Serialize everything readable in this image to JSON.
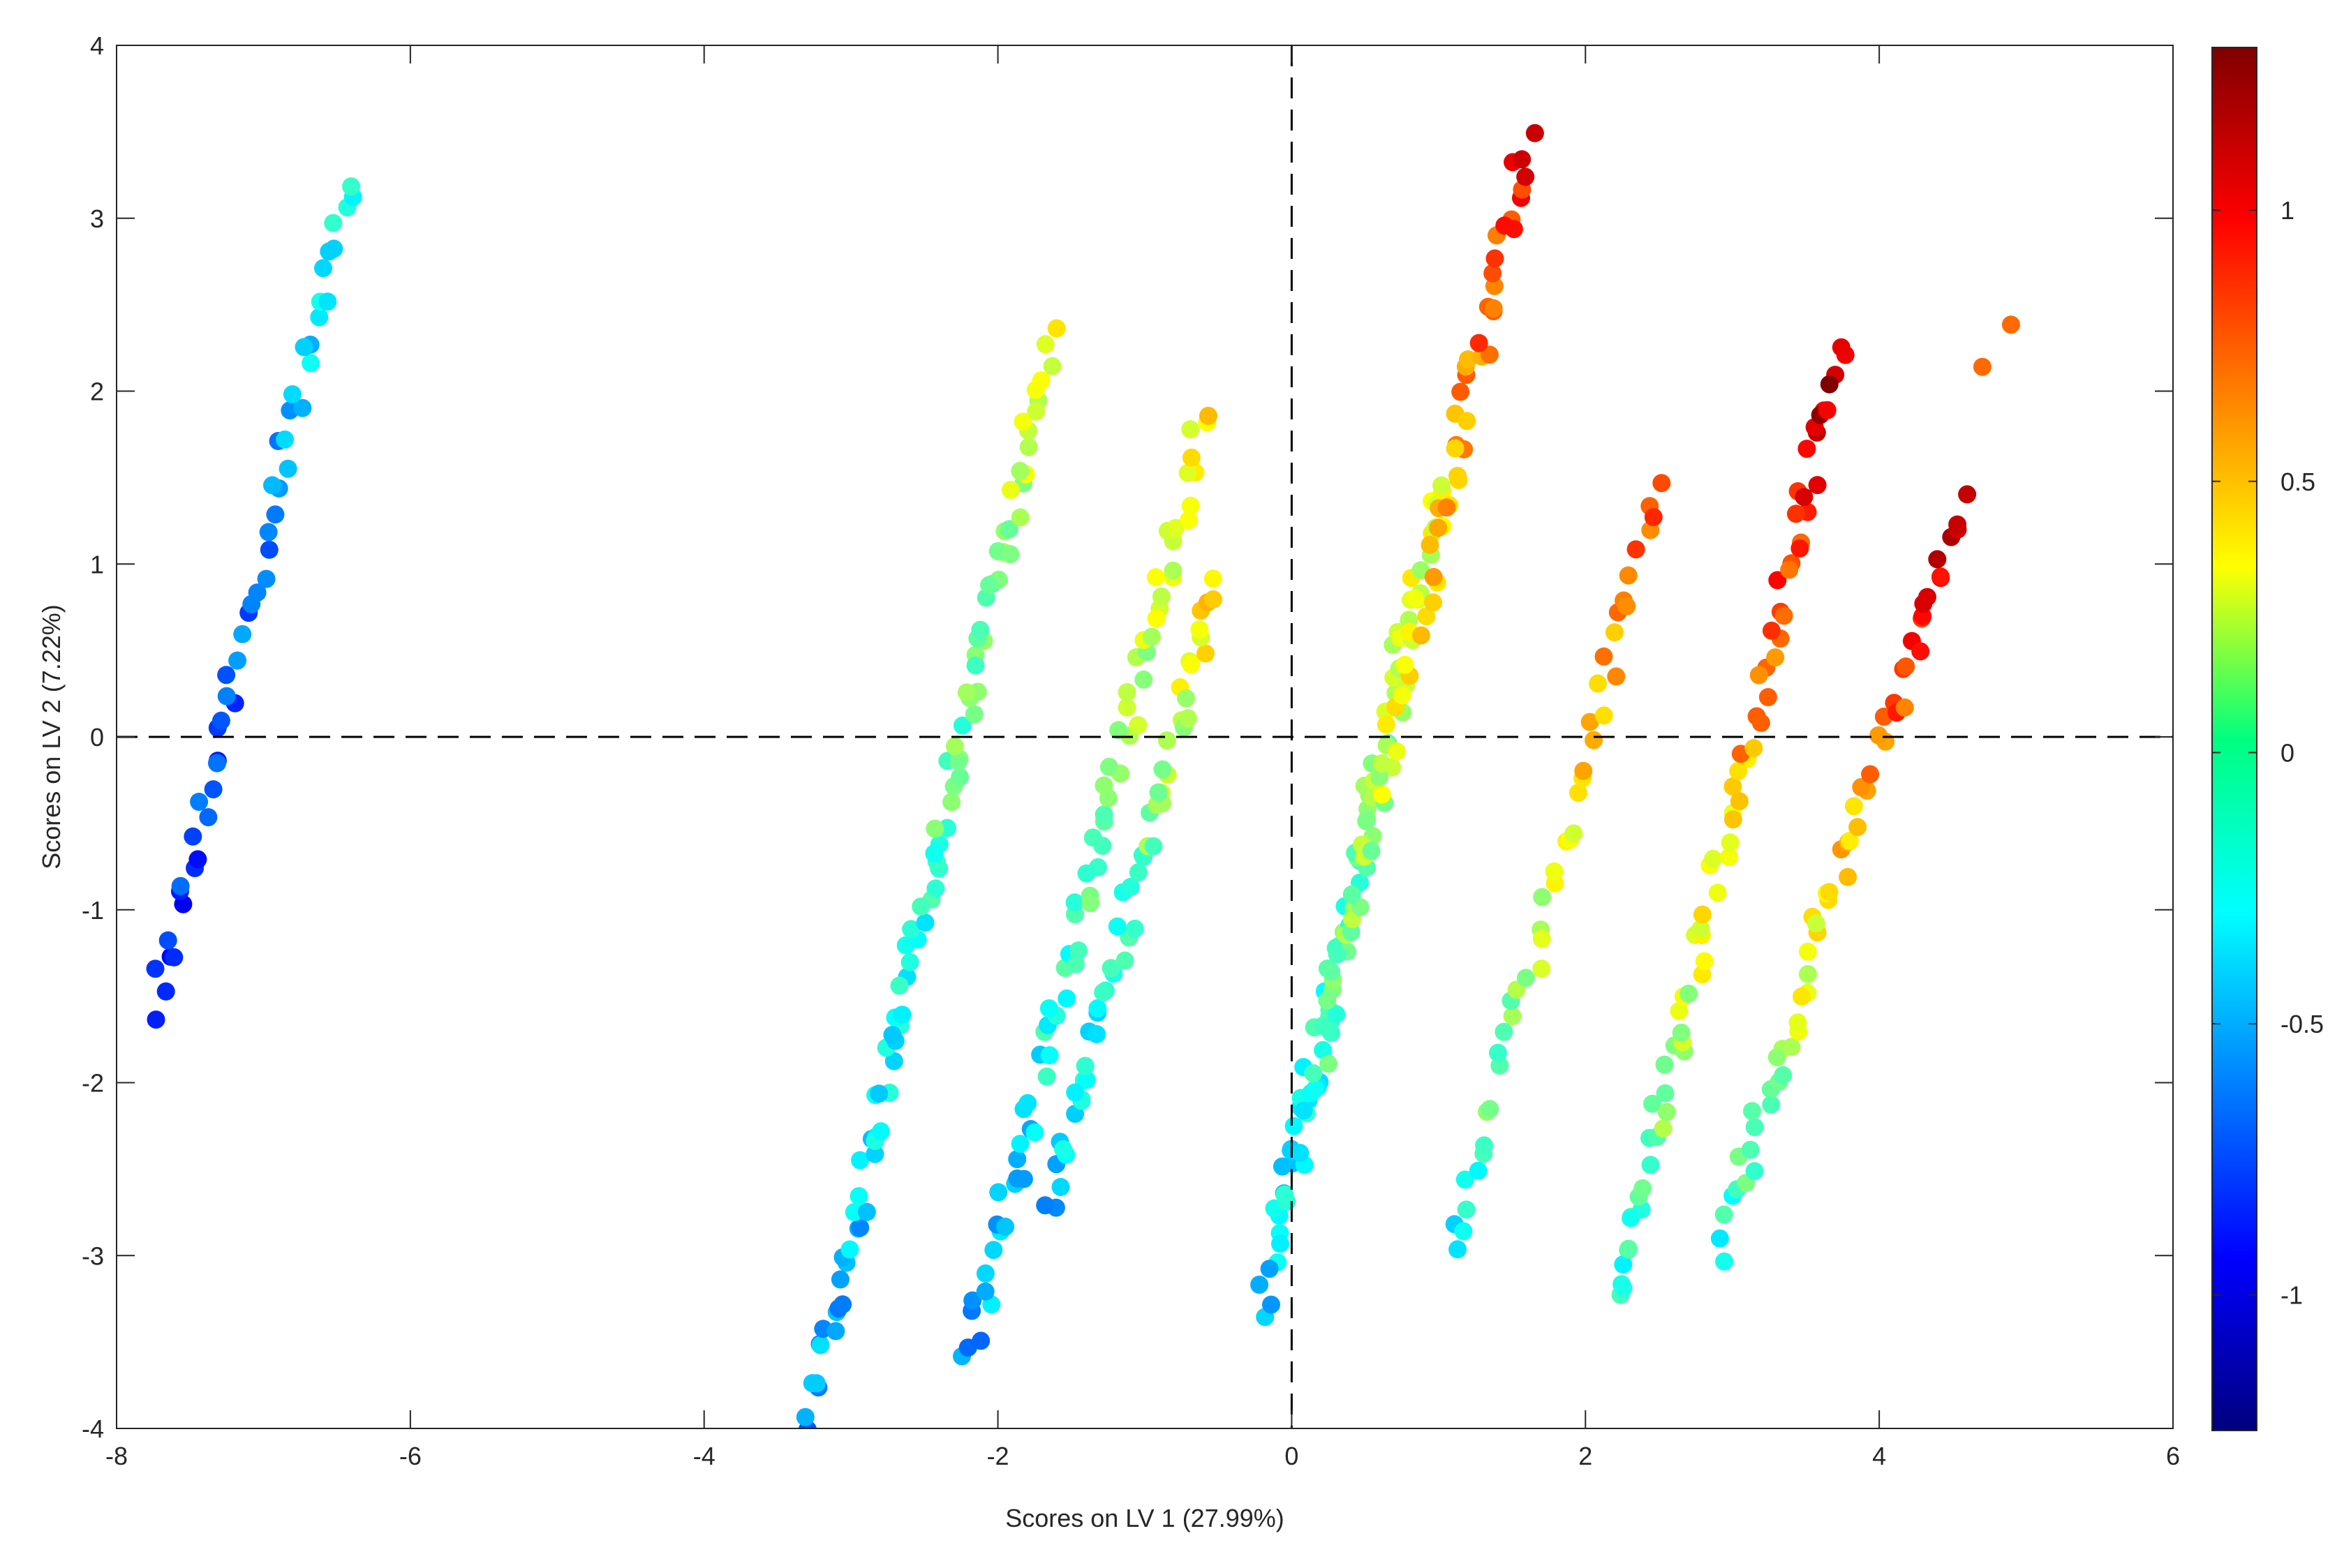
{
  "chart_data": {
    "type": "scatter",
    "title": "",
    "xlabel": "Scores on LV 1 (27.99%)",
    "ylabel": "Scores on LV 2 (7.22%)",
    "xlim": [
      -8,
      6
    ],
    "ylim": [
      -4,
      4
    ],
    "xticks": [
      "-8",
      "-6",
      "-4",
      "-2",
      "0",
      "2",
      "4",
      "6"
    ],
    "yticks": [
      "-4",
      "-3",
      "-2",
      "-1",
      "0",
      "1",
      "2",
      "3",
      "4"
    ],
    "grid": false,
    "reference_lines": {
      "x": 0,
      "y": 0,
      "style": "dashed"
    },
    "colormap": "jet",
    "colorbar": {
      "range": [
        -1.25,
        1.3
      ],
      "ticks": [
        "-1",
        "-0.5",
        "0",
        "0.5",
        "1"
      ]
    },
    "clusters": [
      {
        "x": [
          -7.75,
          -6.4
        ],
        "y": [
          -1.6,
          3.25
        ],
        "c": [
          -0.9,
          -0.3
        ],
        "n": 52
      },
      {
        "x": [
          -3.3,
          -1.65
        ],
        "y": [
          -4.0,
          2.28
        ],
        "c": [
          -0.6,
          0.25
        ],
        "n": 95
      },
      {
        "x": [
          -2.2,
          -0.6
        ],
        "y": [
          -3.6,
          1.85
        ],
        "c": [
          -0.55,
          0.35
        ],
        "n": 75
      },
      {
        "x": [
          -1.65,
          -0.5
        ],
        "y": [
          -2.7,
          0.9
        ],
        "c": [
          -0.5,
          0.4
        ],
        "n": 55
      },
      {
        "x": [
          -0.2,
          1.0
        ],
        "y": [
          -3.3,
          1.5
        ],
        "c": [
          -0.45,
          0.35
        ],
        "n": 70
      },
      {
        "x": [
          0.0,
          1.6
        ],
        "y": [
          -2.6,
          3.45
        ],
        "c": [
          -0.3,
          0.95
        ],
        "n": 90
      },
      {
        "x": [
          1.1,
          2.5
        ],
        "y": [
          -3.0,
          1.45
        ],
        "c": [
          -0.3,
          0.85
        ],
        "n": 45
      },
      {
        "x": [
          2.2,
          3.75
        ],
        "y": [
          -3.3,
          2.28
        ],
        "c": [
          -0.3,
          1.2
        ],
        "n": 75
      },
      {
        "x": [
          2.9,
          4.55
        ],
        "y": [
          -2.95,
          1.35
        ],
        "c": [
          -0.25,
          1.15
        ],
        "n": 60
      },
      {
        "x": [
          4.75,
          4.85
        ],
        "y": [
          2.18,
          2.32
        ],
        "c": [
          0.75,
          0.8
        ],
        "n": 2
      }
    ]
  }
}
